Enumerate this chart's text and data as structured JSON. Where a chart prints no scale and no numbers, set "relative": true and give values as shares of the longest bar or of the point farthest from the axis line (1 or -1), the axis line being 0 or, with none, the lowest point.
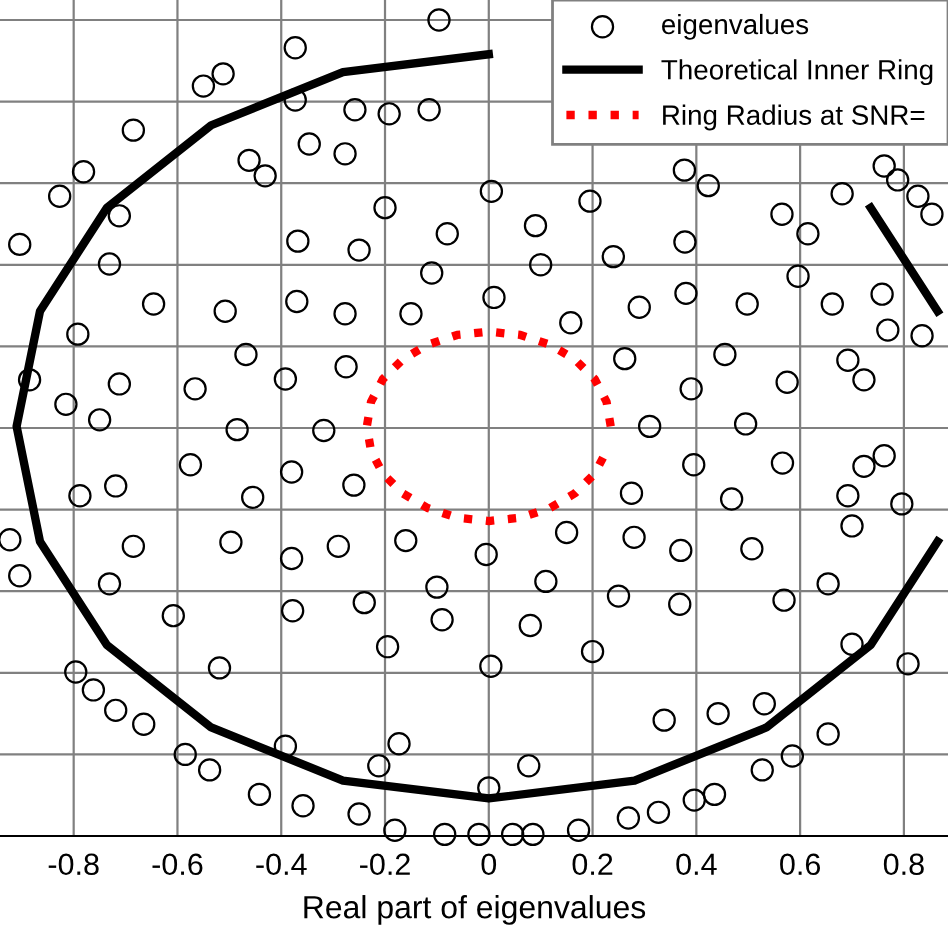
{
  "chart_data": {
    "type": "scatter",
    "xlabel": "Real part of eigenvalues",
    "xlim": [
      -0.942,
      0.885
    ],
    "xticks": [
      -0.8,
      -0.6,
      -0.4,
      -0.2,
      0,
      0.2,
      0.4,
      0.6,
      0.8
    ],
    "relative": true,
    "grid": true,
    "legend": "top right",
    "series": [
      {
        "name": "eigenvalues",
        "marker": "circle",
        "color": "#000000",
        "x": [
          -0.096,
          -0.373,
          -0.512,
          -0.55,
          -0.685,
          -0.781,
          -0.827,
          -0.904,
          -0.712,
          -0.731,
          -0.646,
          -0.373,
          -0.258,
          -0.192,
          -0.115,
          -0.346,
          -0.277,
          -0.462,
          -0.431,
          0.762,
          0.788,
          0.827,
          0.854,
          0.681,
          0.662,
          0.758,
          0.565,
          0.615,
          0.596,
          0.423,
          0.377,
          -0.792,
          -0.885,
          -0.712,
          -0.815,
          -0.75,
          -0.788,
          -0.719,
          -0.923,
          -0.904,
          -0.731,
          -0.685,
          -0.608,
          0.769,
          0.835,
          0.692,
          0.723,
          0.762,
          0.723,
          0.692,
          0.796,
          0.7,
          0.654,
          0.569,
          -0.796,
          -0.762,
          -0.719,
          -0.665,
          -0.585,
          -0.538,
          -0.519,
          -0.392,
          -0.442,
          -0.358,
          -0.25,
          -0.212,
          -0.181,
          -0.173,
          -0.085,
          -0.019,
          0,
          0.046,
          0.085,
          0.077,
          0.173,
          0.269,
          0.327,
          0.396,
          0.435,
          0.527,
          0.585,
          0.654,
          0.531,
          0.442,
          0.338,
          0.808,
          0.7,
          0.31,
          0.262,
          0.158,
          0.01,
          -0.15,
          -0.275,
          -0.318,
          -0.26,
          -0.16,
          -0.005,
          0.15,
          0.275,
          0.39,
          0.29,
          0.1,
          -0.11,
          -0.277,
          -0.392,
          -0.38,
          -0.29,
          -0.1,
          0.11,
          0.28,
          0.395,
          0.495,
          0.455,
          0.38,
          0.24,
          0.09,
          -0.08,
          -0.25,
          -0.37,
          -0.468,
          -0.485,
          -0.455,
          -0.38,
          -0.24,
          -0.09,
          0.08,
          0.25,
          0.37,
          0.468,
          0.575,
          0.498,
          0.378,
          0.195,
          0.005,
          -0.2,
          -0.368,
          -0.508,
          -0.566,
          -0.575,
          -0.497,
          -0.378,
          -0.195,
          0.004,
          0.2,
          0.368,
          0.507,
          0.566
        ],
        "values": [
          1.0,
          0.966,
          0.934,
          0.919,
          0.865,
          0.814,
          0.784,
          0.725,
          0.76,
          0.701,
          0.652,
          0.902,
          0.89,
          0.885,
          0.89,
          0.848,
          0.836,
          0.828,
          0.809,
          0.821,
          0.804,
          0.784,
          0.762,
          0.787,
          0.652,
          0.664,
          0.762,
          0.738,
          0.686,
          0.797,
          0.816,
          0.615,
          0.559,
          0.554,
          0.529,
          0.51,
          0.417,
          0.429,
          0.363,
          0.319,
          0.309,
          0.355,
          0.27,
          0.62,
          0.613,
          0.583,
          0.559,
          0.466,
          0.453,
          0.417,
          0.407,
          0.38,
          0.309,
          0.289,
          0.201,
          0.179,
          0.154,
          0.137,
          0.1,
          0.081,
          0.206,
          0.11,
          0.051,
          0.037,
          0.027,
          0.086,
          0.007,
          0.113,
          0.002,
          0.002,
          0.059,
          0.002,
          0.002,
          0.086,
          0.007,
          0.022,
          0.029,
          0.044,
          0.051,
          0.081,
          0.098,
          0.125,
          0.162,
          0.15,
          0.142,
          0.211,
          0.235,
          0.502,
          0.585,
          0.629,
          0.66,
          0.64,
          0.575,
          0.497,
          0.43,
          0.362,
          0.345,
          0.372,
          0.42,
          0.548,
          0.648,
          0.7,
          0.69,
          0.64,
          0.56,
          0.446,
          0.355,
          0.305,
          0.312,
          0.366,
          0.455,
          0.505,
          0.59,
          0.665,
          0.71,
          0.748,
          0.738,
          0.718,
          0.655,
          0.59,
          0.498,
          0.415,
          0.34,
          0.286,
          0.265,
          0.258,
          0.294,
          0.35,
          0.413,
          0.556,
          0.652,
          0.728,
          0.778,
          0.79,
          0.77,
          0.729,
          0.643,
          0.548,
          0.455,
          0.36,
          0.276,
          0.232,
          0.208,
          0.226,
          0.284,
          0.352,
          0.457
        ]
      },
      {
        "name": "Theoretical Inner Ring",
        "type": "line",
        "line_style": "solid",
        "color": "#000000",
        "x": [
          0.865,
          0.736,
          0.535,
          0.281,
          0,
          -0.281,
          -0.535,
          -0.736,
          -0.865,
          -0.91,
          -0.865,
          -0.736,
          -0.535,
          -0.281,
          0,
          0.281,
          0.535,
          0.736,
          0.865
        ],
        "values": [
          0.643,
          0.77,
          null,
          null,
          0.958,
          0.936,
          0.871,
          0.77,
          0.643,
          0.502,
          0.361,
          0.234,
          0.133,
          0.068,
          0.046,
          0.068,
          0.133,
          0.234,
          0.361
        ]
      },
      {
        "name": "Ring Radius at SNR=",
        "type": "line",
        "line_style": "dotted",
        "color": "#ff0000",
        "x": [
          0.235,
          0.227,
          0.204,
          0.166,
          0.118,
          0.061,
          0,
          -0.061,
          -0.118,
          -0.166,
          -0.204,
          -0.227,
          -0.235,
          -0.227,
          -0.204,
          -0.166,
          -0.118,
          -0.061,
          0,
          0.061,
          0.118,
          0.166,
          0.204,
          0.227
        ],
        "values": [
          0.502,
          0.532,
          0.56,
          0.584,
          0.602,
          0.614,
          0.618,
          0.614,
          0.602,
          0.584,
          0.56,
          0.532,
          0.502,
          0.472,
          0.444,
          0.42,
          0.402,
          0.39,
          0.386,
          0.39,
          0.402,
          0.42,
          0.444,
          0.472
        ]
      }
    ]
  }
}
